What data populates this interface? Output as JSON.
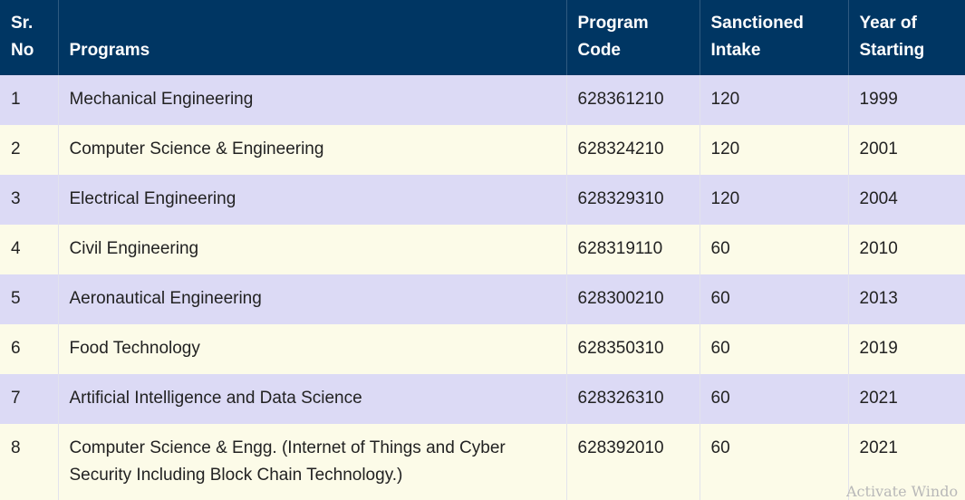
{
  "table": {
    "headers": [
      {
        "line1": "Sr.",
        "line2": "No"
      },
      {
        "line1": "",
        "line2": "Programs"
      },
      {
        "line1": "Program",
        "line2": "Code"
      },
      {
        "line1": "Sanctioned",
        "line2": "Intake"
      },
      {
        "line1": "Year of",
        "line2": "Starting"
      }
    ],
    "rows": [
      {
        "sr": "1",
        "program": "Mechanical Engineering",
        "code": "628361210",
        "intake": "120",
        "year": "1999"
      },
      {
        "sr": "2",
        "program": "Computer Science & Engineering",
        "code": "628324210",
        "intake": "120",
        "year": "2001"
      },
      {
        "sr": "3",
        "program": "Electrical Engineering",
        "code": "628329310",
        "intake": "120",
        "year": "2004"
      },
      {
        "sr": "4",
        "program": "Civil Engineering",
        "code": "628319110",
        "intake": "60",
        "year": "2010"
      },
      {
        "sr": "5",
        "program": "Aeronautical Engineering",
        "code": "628300210",
        "intake": "60",
        "year": "2013"
      },
      {
        "sr": "6",
        "program": "Food Technology",
        "code": "628350310",
        "intake": "60",
        "year": "2019"
      },
      {
        "sr": "7",
        "program": "Artificial Intelligence and Data Science",
        "code": "628326310",
        "intake": "60",
        "year": "2021"
      },
      {
        "sr": "8",
        "program_line1": "Computer Science & Engg. (Internet of Things and Cyber",
        "program_line2": "Security Including Block Chain Technology.)",
        "code": "628392010",
        "intake": "60",
        "year": "2021"
      }
    ]
  },
  "watermark": "Activate Windo"
}
